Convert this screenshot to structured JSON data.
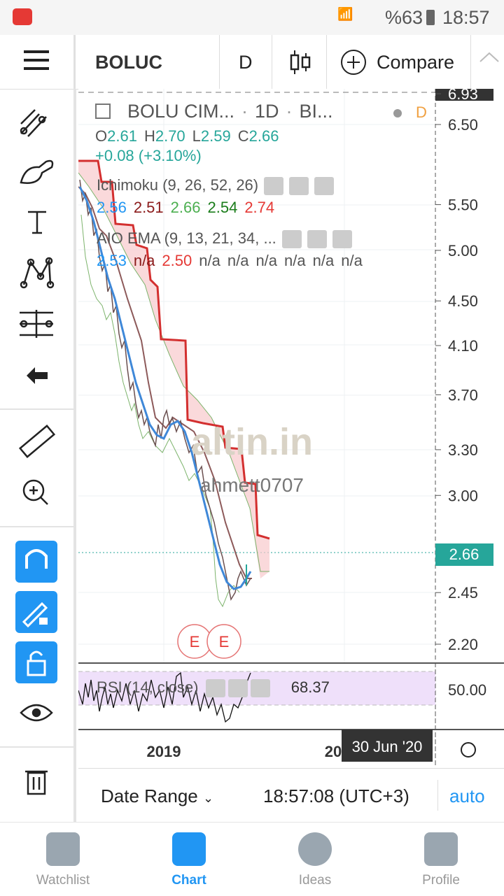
{
  "status_bar": {
    "battery": "%63",
    "time": "18:57"
  },
  "toolbar": {
    "symbol": "BOLUC",
    "interval": "D",
    "compare": "Compare"
  },
  "legend": {
    "name": "BOLU CIM...",
    "interval": "1D",
    "exchange": "BI...",
    "flag": "D",
    "ohlc": [
      {
        "label": "O",
        "value": "2.61"
      },
      {
        "label": "H",
        "value": "2.70"
      },
      {
        "label": "L",
        "value": "2.59"
      },
      {
        "label": "C",
        "value": "2.66"
      }
    ],
    "change": "+0.08 (+3.10%)"
  },
  "indicators": [
    {
      "name": "Ichimoku (9, 26, 52, 26)",
      "values": [
        {
          "text": "2.56",
          "color": "#2196f3"
        },
        {
          "text": "2.51",
          "color": "#8b1a1a"
        },
        {
          "text": "2.66",
          "color": "#4caf50"
        },
        {
          "text": "2.54",
          "color": "#1b7d1b"
        },
        {
          "text": "2.74",
          "color": "#e53935"
        }
      ]
    },
    {
      "name": "AIO EMA (9, 13, 21, 34, ...",
      "values": [
        {
          "text": "2.53",
          "color": "#2196f3"
        },
        {
          "text": "n/a",
          "color": "#8b1a1a"
        },
        {
          "text": "2.50",
          "color": "#e53935"
        },
        {
          "text": "n/a",
          "color": "#555555"
        },
        {
          "text": "n/a",
          "color": "#555555"
        },
        {
          "text": "n/a",
          "color": "#555555"
        },
        {
          "text": "n/a",
          "color": "#555555"
        },
        {
          "text": "n/a",
          "color": "#555555"
        },
        {
          "text": "n/a",
          "color": "#555555"
        }
      ]
    }
  ],
  "price_axis": {
    "ticks": [
      "6.93",
      "6.50",
      "5.50",
      "5.00",
      "4.50",
      "4.10",
      "3.70",
      "3.30",
      "3.00",
      "2.45",
      "2.20"
    ],
    "last_price": "2.66"
  },
  "rsi": {
    "name": "RSI (14, close)",
    "value": "68.37",
    "axis_label": "50.00"
  },
  "time_axis": {
    "labels": [
      "2019",
      "20"
    ],
    "cursor_date": "30 Jun '20"
  },
  "watermark": {
    "brand": "altin.in",
    "user": "ahmett0707"
  },
  "events": [
    "E",
    "E"
  ],
  "bottom_bar": {
    "date_range": "Date Range",
    "time": "18:57:08 (UTC+3)",
    "mode": "auto"
  },
  "nav": [
    "Watchlist",
    "Chart",
    "Ideas",
    "Profile"
  ]
}
